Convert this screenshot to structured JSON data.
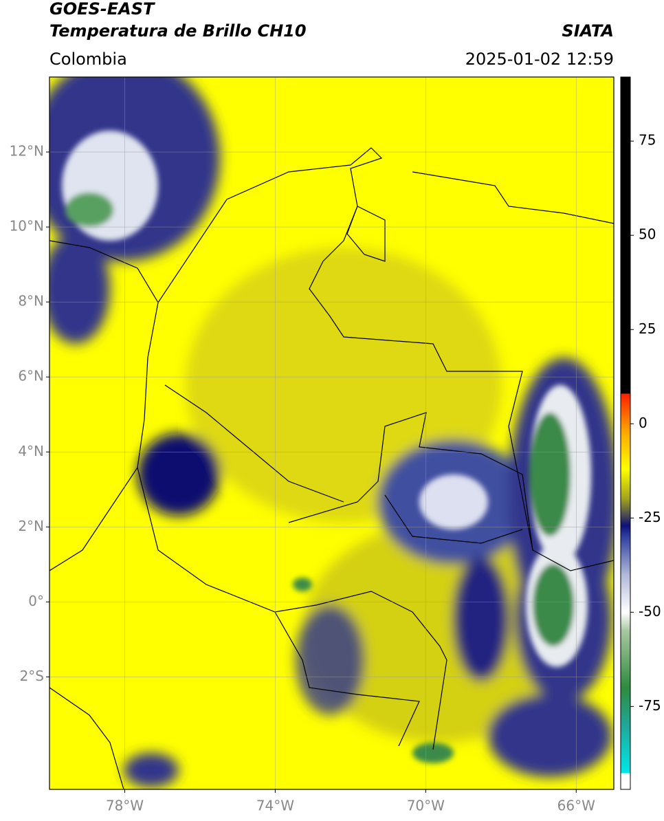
{
  "header": {
    "satellite": "GOES-EAST",
    "product": "Temperatura de Brillo CH10",
    "source": "SIATA",
    "region": "Colombia",
    "datetime": "2025-01-02 12:59"
  },
  "map": {
    "lonlim": [
      -80,
      -65
    ],
    "latlim": [
      -5,
      14
    ],
    "lonticks": [
      {
        "value": -78,
        "label": "78°W"
      },
      {
        "value": -74,
        "label": "74°W"
      },
      {
        "value": -70,
        "label": "70°W"
      },
      {
        "value": -66,
        "label": "66°W"
      }
    ],
    "latticks": [
      {
        "value": 12,
        "label": "12°N"
      },
      {
        "value": 10,
        "label": "10°N"
      },
      {
        "value": 8,
        "label": "8°N"
      },
      {
        "value": 6,
        "label": "6°N"
      },
      {
        "value": 4,
        "label": "4°N"
      },
      {
        "value": 2,
        "label": "2°N"
      },
      {
        "value": 0,
        "label": "0°"
      },
      {
        "value": -2,
        "label": "2°S"
      }
    ],
    "grid": true,
    "background": "#ffff00"
  },
  "colorbar": {
    "lim": [
      -97,
      92
    ],
    "ticks": [
      75,
      50,
      25,
      0,
      -25,
      -50,
      -75
    ],
    "stops": [
      {
        "value": -97,
        "color": "#ffffff"
      },
      {
        "value": -92.7,
        "color": "#ffffff"
      },
      {
        "value": -92.7,
        "color": "#00e8e8"
      },
      {
        "value": -80,
        "color": "#20a898"
      },
      {
        "value": -70,
        "color": "#2e8b3e"
      },
      {
        "value": -55,
        "color": "#a8c8a0"
      },
      {
        "value": -50,
        "color": "#ffffff"
      },
      {
        "value": -40,
        "color": "#b0b8d8"
      },
      {
        "value": -30,
        "color": "#3040a0"
      },
      {
        "value": -27,
        "color": "#10107a"
      },
      {
        "value": -24,
        "color": "#505050"
      },
      {
        "value": -20,
        "color": "#a0a020"
      },
      {
        "value": -12,
        "color": "#ffff00"
      },
      {
        "value": -2,
        "color": "#ffa500"
      },
      {
        "value": 8,
        "color": "#ff2000"
      },
      {
        "value": 8,
        "color": "#000000"
      },
      {
        "value": 92,
        "color": "#000000"
      }
    ]
  }
}
